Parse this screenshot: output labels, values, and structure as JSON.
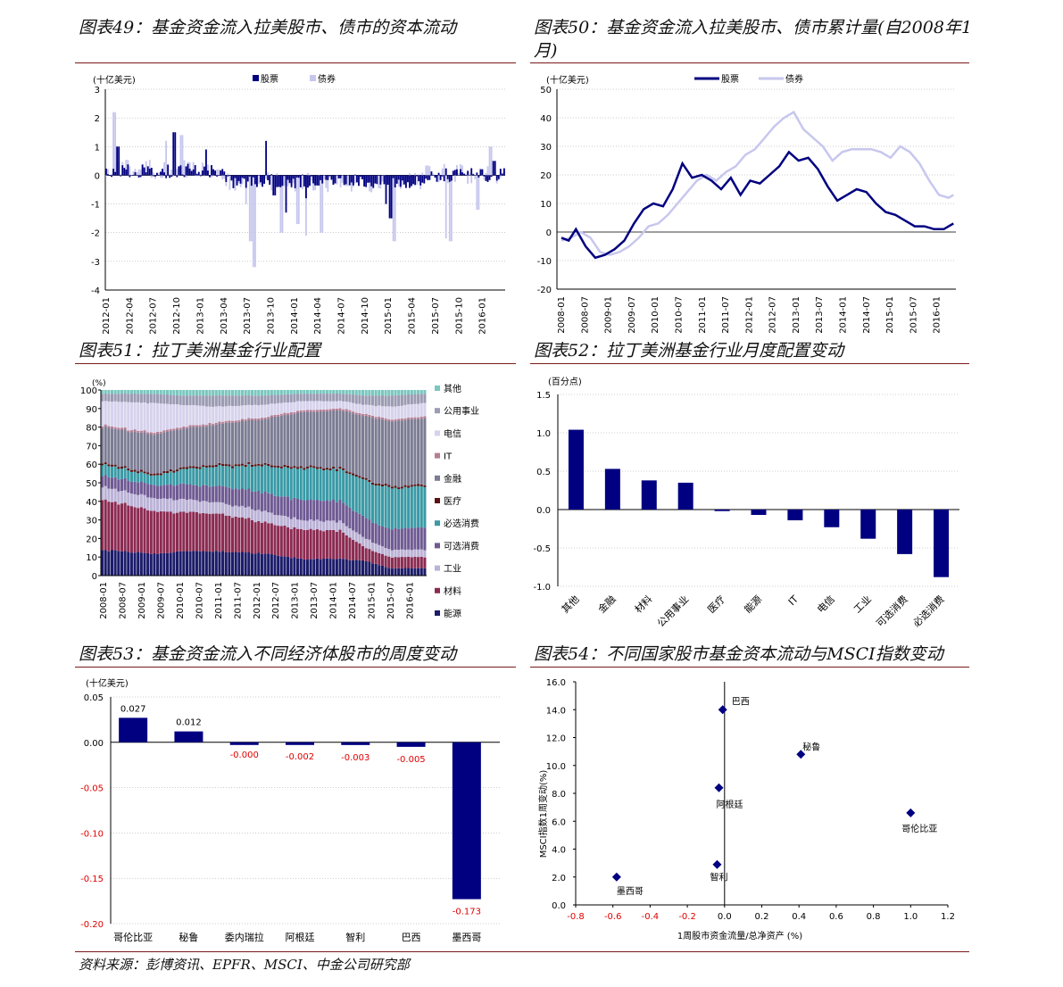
{
  "titles": {
    "c49": "图表49：基金资金流入拉美股市、债市的资本流动",
    "c50": "图表50：基金资金流入拉美股市、债市累计量(自2008年1月)",
    "c51": "图表51：拉丁美洲基金行业配置",
    "c52": "图表52：拉丁美洲基金行业月度配置变动",
    "c53": "图表53：基金资金流入不同经济体股市的周度变动",
    "c54": "图表54：不同国家股市基金资本流动与MSCI指数变动"
  },
  "source": "资料来源：彭博资讯、EPFR、MSCI、中金公司研究部",
  "colors": {
    "navy": "#000080",
    "lavender": "#c7c7ee",
    "red": "#e00000",
    "rule": "#7a1a1a"
  },
  "chart_data": [
    {
      "id": "c49",
      "type": "bar",
      "unit": "(十亿美元)",
      "legend": [
        "股票",
        "债券"
      ],
      "ylim": [
        -4,
        3
      ],
      "yticks": [
        3,
        2,
        1,
        0,
        -1,
        -2,
        -3,
        -4
      ],
      "xticks": [
        "2012-01",
        "2012-04",
        "2012-07",
        "2012-10",
        "2013-01",
        "2013-04",
        "2013-07",
        "2013-10",
        "2014-01",
        "2014-04",
        "2014-07",
        "2014-10",
        "2015-01",
        "2015-04",
        "2015-07",
        "2015-10",
        "2016-01"
      ],
      "period": "2012-01 ~ 2016-03 weekly",
      "spikes_equity": [
        [
          0.03,
          1.0
        ],
        [
          0.17,
          1.5
        ],
        [
          0.25,
          0.9
        ],
        [
          0.4,
          1.2
        ],
        [
          0.42,
          -0.7
        ],
        [
          0.45,
          -1.3
        ],
        [
          0.5,
          -0.8
        ],
        [
          0.7,
          -1.0
        ],
        [
          0.71,
          -1.5
        ],
        [
          0.97,
          0.5
        ]
      ],
      "spikes_bond": [
        [
          0.02,
          2.2
        ],
        [
          0.15,
          1.2
        ],
        [
          0.19,
          1.4
        ],
        [
          0.35,
          -1.0
        ],
        [
          0.36,
          -2.3
        ],
        [
          0.37,
          -3.2
        ],
        [
          0.44,
          -2.0
        ],
        [
          0.48,
          -1.7
        ],
        [
          0.5,
          -2.1
        ],
        [
          0.54,
          -2.0
        ],
        [
          0.72,
          -2.3
        ],
        [
          0.85,
          -2.2
        ],
        [
          0.86,
          -2.3
        ],
        [
          0.93,
          -1.2
        ],
        [
          0.96,
          1.0
        ]
      ]
    },
    {
      "id": "c50",
      "type": "line",
      "unit": "(十亿美元)",
      "legend": [
        "股票",
        "债券"
      ],
      "ylim": [
        -20,
        50
      ],
      "yticks": [
        50,
        40,
        30,
        20,
        10,
        0,
        -10,
        -20
      ],
      "xticks": [
        "2008-01",
        "2008-07",
        "2009-01",
        "2009-07",
        "2010-01",
        "2010-07",
        "2011-01",
        "2011-07",
        "2012-01",
        "2012-07",
        "2013-01",
        "2013-07",
        "2014-01",
        "2014-07",
        "2015-01",
        "2015-07",
        "2016-01"
      ],
      "series": [
        {
          "name": "股票",
          "x": [
            0,
            0.3,
            0.6,
            1,
            1.4,
            1.8,
            2.2,
            2.6,
            3,
            3.4,
            3.8,
            4.2,
            4.6,
            5,
            5.4,
            5.8,
            6.2,
            6.6,
            7,
            7.4,
            7.8,
            8.2,
            8.6,
            9,
            9.4,
            9.8,
            10.2,
            10.6,
            11,
            11.4,
            11.8,
            12.2,
            12.6,
            13,
            13.4,
            13.8,
            14.2,
            14.6,
            15,
            15.4,
            15.8,
            16,
            16.2
          ],
          "y": [
            -2,
            -3,
            1,
            -5,
            -9,
            -8,
            -6,
            -3,
            3,
            8,
            10,
            9,
            15,
            24,
            19,
            20,
            18,
            15,
            19,
            13,
            18,
            17,
            20,
            23,
            28,
            25,
            26,
            22,
            16,
            11,
            13,
            15,
            14,
            10,
            7,
            6,
            4,
            2,
            2,
            1,
            1,
            2,
            3
          ]
        },
        {
          "name": "债券",
          "x": [
            0,
            0.4,
            0.8,
            1.2,
            1.6,
            2,
            2.4,
            2.8,
            3.2,
            3.6,
            4,
            4.4,
            4.8,
            5.2,
            5.6,
            6,
            6.4,
            6.8,
            7.2,
            7.6,
            8,
            8.4,
            8.8,
            9.2,
            9.6,
            10,
            10.4,
            10.8,
            11.2,
            11.6,
            12,
            12.4,
            12.8,
            13.2,
            13.6,
            14,
            14.4,
            14.8,
            15.2,
            15.6,
            16,
            16.2
          ],
          "y": [
            -3,
            -2,
            0,
            -2,
            -7,
            -8,
            -7,
            -5,
            -2,
            2,
            3,
            6,
            10,
            14,
            18,
            20,
            18,
            21,
            23,
            27,
            29,
            33,
            37,
            40,
            42,
            36,
            33,
            30,
            25,
            28,
            29,
            29,
            29,
            28,
            26,
            30,
            28,
            24,
            18,
            13,
            12,
            13
          ]
        }
      ]
    },
    {
      "id": "c51",
      "type": "area",
      "unit": "(%)",
      "ylim": [
        0,
        100
      ],
      "yticks": [
        100,
        90,
        80,
        70,
        60,
        50,
        40,
        30,
        20,
        10,
        0
      ],
      "xticks": [
        "2008-01",
        "2008-07",
        "2009-01",
        "2009-07",
        "2010-01",
        "2010-07",
        "2011-01",
        "2011-07",
        "2012-01",
        "2012-07",
        "2013-01",
        "2013-07",
        "2014-01",
        "2014-07",
        "2015-01",
        "2015-07",
        "2016-01"
      ],
      "stack_order": [
        "能源",
        "材料",
        "工业",
        "可选消费",
        "必选消费",
        "医疗",
        "金融",
        "IT",
        "电信",
        "公用事业",
        "其他"
      ],
      "legend": [
        "其他",
        "公用事业",
        "电信",
        "IT",
        "金融",
        "医疗",
        "必选消费",
        "可选消费",
        "工业",
        "材料",
        "能源"
      ],
      "colors": {
        "能源": "#1c1c6a",
        "材料": "#8b2b52",
        "工业": "#bbb2d6",
        "可选消费": "#6f5a93",
        "必选消费": "#3a9aa6",
        "医疗": "#5a1212",
        "金融": "#7c7c94",
        "IT": "#b67d92",
        "电信": "#d6d2ec",
        "公用事业": "#9b9bb3",
        "其他": "#7ac7bf"
      },
      "snapshots_x": [
        0,
        2.5,
        4,
        6,
        8,
        10,
        12,
        13.2,
        14.5,
        16.2
      ],
      "series": [
        {
          "name": "能源",
          "values": [
            14,
            12,
            13,
            13,
            12,
            9,
            9,
            8,
            4,
            4
          ]
        },
        {
          "name": "材料",
          "values": [
            27,
            23,
            21,
            20,
            17,
            16,
            15,
            7,
            6,
            6
          ]
        },
        {
          "name": "工业",
          "values": [
            7,
            7,
            7,
            6,
            6,
            5,
            5,
            5,
            4,
            4
          ]
        },
        {
          "name": "可选消费",
          "values": [
            6,
            7,
            8,
            9,
            10,
            11,
            11,
            11,
            11,
            12
          ]
        },
        {
          "name": "必选消费",
          "values": [
            6,
            5,
            8,
            11,
            14,
            17,
            17,
            20,
            22,
            22
          ]
        },
        {
          "name": "医疗",
          "values": [
            1,
            1,
            1,
            1,
            1,
            1,
            1,
            1,
            1,
            1
          ]
        },
        {
          "name": "金融",
          "values": [
            19,
            21,
            21,
            22,
            24,
            29,
            31,
            34,
            35,
            36
          ]
        },
        {
          "name": "IT",
          "values": [
            1,
            1,
            1,
            1,
            1,
            1,
            1,
            1,
            1,
            1
          ]
        },
        {
          "name": "电信",
          "values": [
            13,
            16,
            12,
            8,
            7,
            5,
            4,
            5,
            7,
            7
          ]
        },
        {
          "name": "公用事业",
          "values": [
            4,
            5,
            5,
            6,
            5,
            4,
            4,
            5,
            6,
            5
          ]
        },
        {
          "name": "其他",
          "values": [
            2,
            2,
            3,
            3,
            3,
            2,
            2,
            3,
            3,
            2
          ]
        }
      ]
    },
    {
      "id": "c52",
      "type": "bar",
      "unit": "(百分点)",
      "categories": [
        "其他",
        "金融",
        "材料",
        "公用事业",
        "医疗",
        "能源",
        "IT",
        "电信",
        "工业",
        "可选消费",
        "必选消费"
      ],
      "values": [
        1.04,
        0.53,
        0.38,
        0.35,
        -0.02,
        -0.07,
        -0.14,
        -0.23,
        -0.38,
        -0.58,
        -0.88
      ],
      "ylim": [
        -1.0,
        1.5
      ],
      "yticks": [
        "1.5",
        "1.0",
        "0.5",
        "0.0",
        "-0.5",
        "-1.0"
      ]
    },
    {
      "id": "c53",
      "type": "bar",
      "unit": "(十亿美元)",
      "categories": [
        "哥伦比亚",
        "秘鲁",
        "委内瑞拉",
        "阿根廷",
        "智利",
        "巴西",
        "墨西哥"
      ],
      "values": [
        0.027,
        0.012,
        -0.0,
        -0.002,
        -0.003,
        -0.005,
        -0.173
      ],
      "labels": [
        "0.027",
        "0.012",
        "-0.000",
        "-0.002",
        "-0.003",
        "-0.005",
        "-0.173"
      ],
      "ylim": [
        -0.2,
        0.05
      ],
      "yticks": [
        "0.05",
        "0.00",
        "-0.05",
        "-0.10",
        "-0.15",
        "-0.20"
      ]
    },
    {
      "id": "c54",
      "type": "scatter",
      "xlabel": "1周股市资金流量/总净资产 (%)",
      "ylabel": "MSCI指数1周变动(%)",
      "xlim": [
        -0.8,
        1.2
      ],
      "ylim": [
        0.0,
        16.0
      ],
      "xticks": [
        "-0.8",
        "-0.6",
        "-0.4",
        "-0.2",
        "0.0",
        "0.2",
        "0.4",
        "0.6",
        "0.8",
        "1.0",
        "1.2"
      ],
      "yticks": [
        "16.0",
        "14.0",
        "12.0",
        "10.0",
        "8.0",
        "6.0",
        "4.0",
        "2.0",
        "0.0"
      ],
      "points": [
        {
          "label": "巴西",
          "x": -0.01,
          "y": 14.0
        },
        {
          "label": "秘鲁",
          "x": 0.41,
          "y": 10.8
        },
        {
          "label": "阿根廷",
          "x": -0.03,
          "y": 8.4
        },
        {
          "label": "哥伦比亚",
          "x": 1.0,
          "y": 6.6
        },
        {
          "label": "智利",
          "x": -0.04,
          "y": 2.9
        },
        {
          "label": "墨西哥",
          "x": -0.58,
          "y": 2.0
        }
      ]
    }
  ]
}
